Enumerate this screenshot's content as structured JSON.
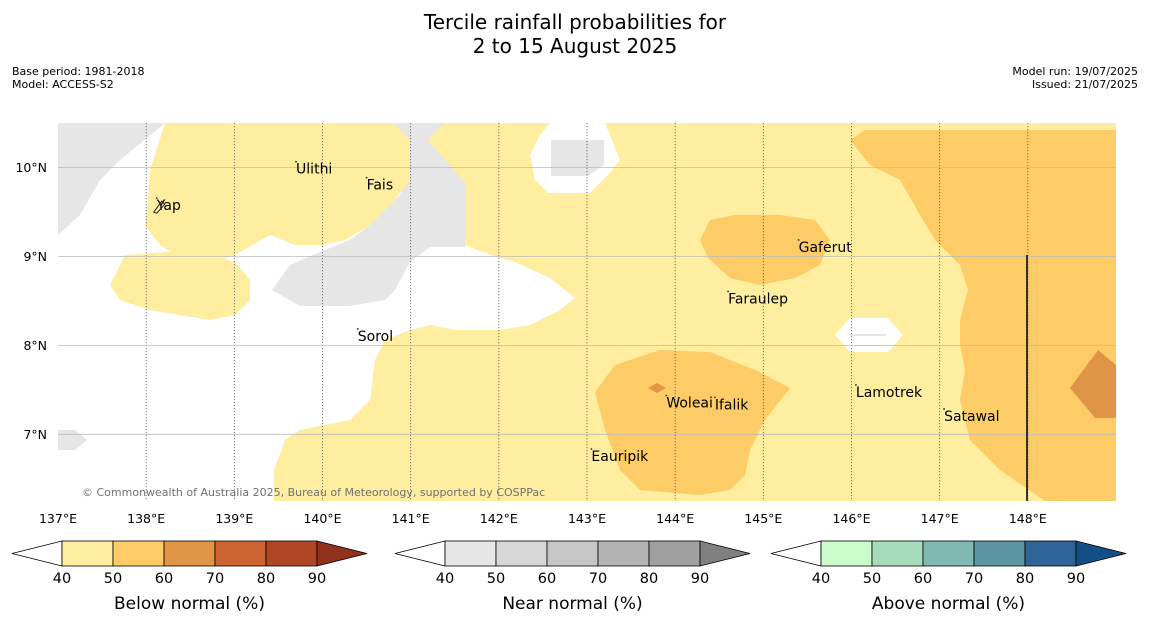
{
  "title_line1": "Tercile rainfall probabilities for",
  "title_line2": "2 to 15 August 2025",
  "meta_left": [
    "Base period: 1981-2018",
    "Model: ACCESS-S2"
  ],
  "meta_right": [
    "Model run: 19/07/2025",
    "Issued: 21/07/2025"
  ],
  "copyright": "© Commonwealth of Australia 2025, Bureau of Meteorology, supported by COSPPac",
  "map": {
    "lon_range": [
      137.0,
      149.0
    ],
    "lat_range": [
      6.25,
      10.5
    ],
    "lon_ticks": [
      "137°E",
      "138°E",
      "139°E",
      "140°E",
      "141°E",
      "142°E",
      "143°E",
      "144°E",
      "145°E",
      "146°E",
      "147°E",
      "148°E"
    ],
    "lat_ticks": [
      "10°N",
      "9°N",
      "8°N",
      "7°N"
    ],
    "places": [
      {
        "name": "Ulithi",
        "lon": 139.7,
        "lat": 9.93
      },
      {
        "name": "Yap",
        "lon": 138.12,
        "lat": 9.52
      },
      {
        "name": "Fais",
        "lon": 140.5,
        "lat": 9.75
      },
      {
        "name": "Gaferut",
        "lon": 145.4,
        "lat": 9.05
      },
      {
        "name": "Faraulep",
        "lon": 144.6,
        "lat": 8.47
      },
      {
        "name": "Sorol",
        "lon": 140.4,
        "lat": 8.05
      },
      {
        "name": "Lamotrek",
        "lon": 146.05,
        "lat": 7.42
      },
      {
        "name": "Woleai",
        "lon": 143.9,
        "lat": 7.3
      },
      {
        "name": "Ifalik",
        "lon": 144.45,
        "lat": 7.28
      },
      {
        "name": "Satawal",
        "lon": 147.05,
        "lat": 7.15
      },
      {
        "name": "Eauripik",
        "lon": 143.05,
        "lat": 6.7
      }
    ]
  },
  "colorbars": [
    {
      "label": "Below normal (%)",
      "ticks": [
        "40",
        "50",
        "60",
        "70",
        "80",
        "90"
      ],
      "colors": [
        "#ffeda0",
        "#fecc66",
        "#e09445",
        "#cd6432",
        "#b04625",
        "#93321c"
      ]
    },
    {
      "label": "Near normal (%)",
      "ticks": [
        "40",
        "50",
        "60",
        "70",
        "80",
        "90"
      ],
      "colors": [
        "#e6e6e6",
        "#d7d7d7",
        "#c6c6c6",
        "#b3b3b3",
        "#a0a0a0",
        "#808080"
      ]
    },
    {
      "label": "Above normal (%)",
      "ticks": [
        "40",
        "50",
        "60",
        "70",
        "80",
        "90"
      ],
      "colors": [
        "#c9fcca",
        "#a6dcbc",
        "#80b8b2",
        "#5b94a2",
        "#2f6499",
        "#134f86"
      ]
    }
  ]
}
